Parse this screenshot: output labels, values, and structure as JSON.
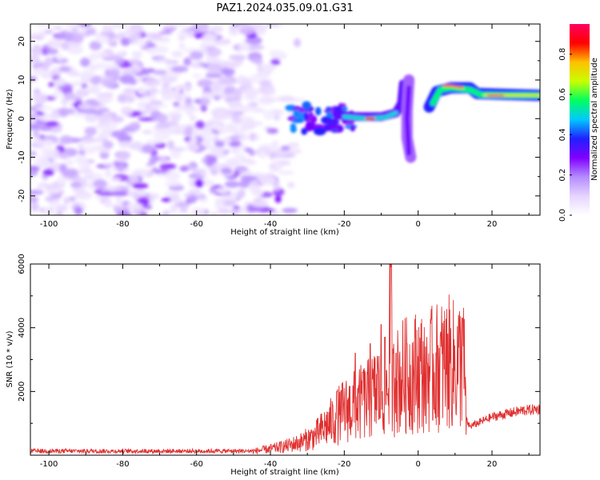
{
  "title": "PAZ1.2024.035.09.01.G31",
  "chart_data": [
    {
      "type": "heatmap",
      "xlabel": "Height of straight line (km)",
      "ylabel": "Frequency (Hz)",
      "xlim": [
        -105,
        33
      ],
      "ylim": [
        -25,
        24.5
      ],
      "xticks": [
        -100,
        -80,
        -60,
        -40,
        -20,
        0,
        20
      ],
      "yticks": [
        -20,
        -10,
        0,
        10,
        20
      ],
      "grid": false,
      "colorbar": {
        "label": "Normalized spectral amplitude",
        "range": [
          0.0,
          0.95
        ],
        "ticks": [
          0.0,
          0.2,
          0.4,
          0.6,
          0.8
        ],
        "colormap": [
          "#ffffff",
          "#e6d4ff",
          "#b48cff",
          "#8000ff",
          "#2020ff",
          "#00c8ff",
          "#00ff60",
          "#c8ff00",
          "#ffc000",
          "#ff0000",
          "#ff0060"
        ]
      },
      "features": [
        {
          "x": [
            -35,
            -17
          ],
          "freq": [
            -4,
            4
          ],
          "amp": 0.35,
          "shape": "patchy band"
        },
        {
          "x": [
            -17,
            -6
          ],
          "freq": [
            0,
            1
          ],
          "amp": 0.55,
          "shape": "line"
        },
        {
          "x": [
            -7,
            -3
          ],
          "freq": [
            2,
            10
          ],
          "amp": 0.35,
          "shape": "rising line"
        },
        {
          "x": [
            -3,
            0
          ],
          "freq": [
            -10,
            8
          ],
          "amp": 0.3,
          "shape": "vertical smear"
        },
        {
          "x": [
            3,
            14
          ],
          "freq": [
            2,
            8
          ],
          "amp": 0.55,
          "shape": "rising line"
        },
        {
          "x": [
            14,
            33
          ],
          "freq": [
            6,
            6
          ],
          "amp": 0.8,
          "shape": "line"
        }
      ]
    },
    {
      "type": "line",
      "xlabel": "Height of straight line (km)",
      "ylabel": "SNR (10 * v/v)",
      "xlim": [
        -105,
        33
      ],
      "ylim": [
        0,
        6000
      ],
      "xticks": [
        -100,
        -80,
        -60,
        -40,
        -20,
        0,
        20
      ],
      "yticks": [
        2000,
        4000,
        6000
      ],
      "grid": false,
      "series": [
        {
          "color": "#e03030",
          "x": [
            -105,
            -100,
            -90,
            -80,
            -70,
            -60,
            -50,
            -45,
            -40,
            -36,
            -32,
            -28,
            -25,
            -22,
            -20,
            -18,
            -16,
            -14,
            -12,
            -10,
            -8,
            -7.5,
            -7,
            -6,
            -4,
            -2,
            0,
            2,
            4,
            6,
            8,
            10,
            11,
            12,
            12.5,
            13,
            14,
            16,
            18,
            20,
            24,
            28,
            33
          ],
          "y": [
            100,
            80,
            100,
            80,
            90,
            100,
            100,
            120,
            200,
            280,
            400,
            600,
            900,
            1200,
            1400,
            1500,
            1600,
            1700,
            1900,
            2000,
            2200,
            6000,
            2100,
            2300,
            2500,
            2500,
            2700,
            2600,
            2700,
            2800,
            2900,
            2800,
            2900,
            2900,
            2700,
            1100,
            900,
            1000,
            1100,
            1200,
            1300,
            1400,
            1450
          ],
          "spikes": [
            {
              "x": -22,
              "y": 2000
            },
            {
              "x": -17,
              "y": 3200
            },
            {
              "x": -15,
              "y": 2600
            },
            {
              "x": -13,
              "y": 3500
            },
            {
              "x": -11,
              "y": 3100
            },
            {
              "x": -10,
              "y": 4100
            },
            {
              "x": -9,
              "y": 3700
            },
            {
              "x": -6,
              "y": 3200
            },
            {
              "x": -3,
              "y": 3500
            },
            {
              "x": 2,
              "y": 3400
            },
            {
              "x": 8,
              "y": 3800
            },
            {
              "x": 12,
              "y": 4300
            }
          ]
        }
      ]
    }
  ]
}
